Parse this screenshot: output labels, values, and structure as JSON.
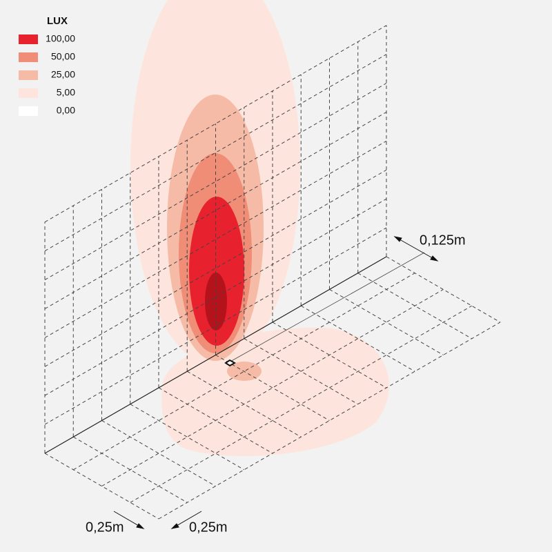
{
  "legend": {
    "title": "LUX",
    "items": [
      {
        "label": "100,00",
        "color": "#e8212e"
      },
      {
        "label": "50,00",
        "color": "#f08d77"
      },
      {
        "label": "25,00",
        "color": "#f6bba7"
      },
      {
        "label": "5,00",
        "color": "#fde5dd"
      },
      {
        "label": "0,00",
        "color": "#ffffff"
      }
    ]
  },
  "dimensions": {
    "offset": "0,125m",
    "grid_x": "0,25m",
    "grid_y": "0,25m"
  }
}
